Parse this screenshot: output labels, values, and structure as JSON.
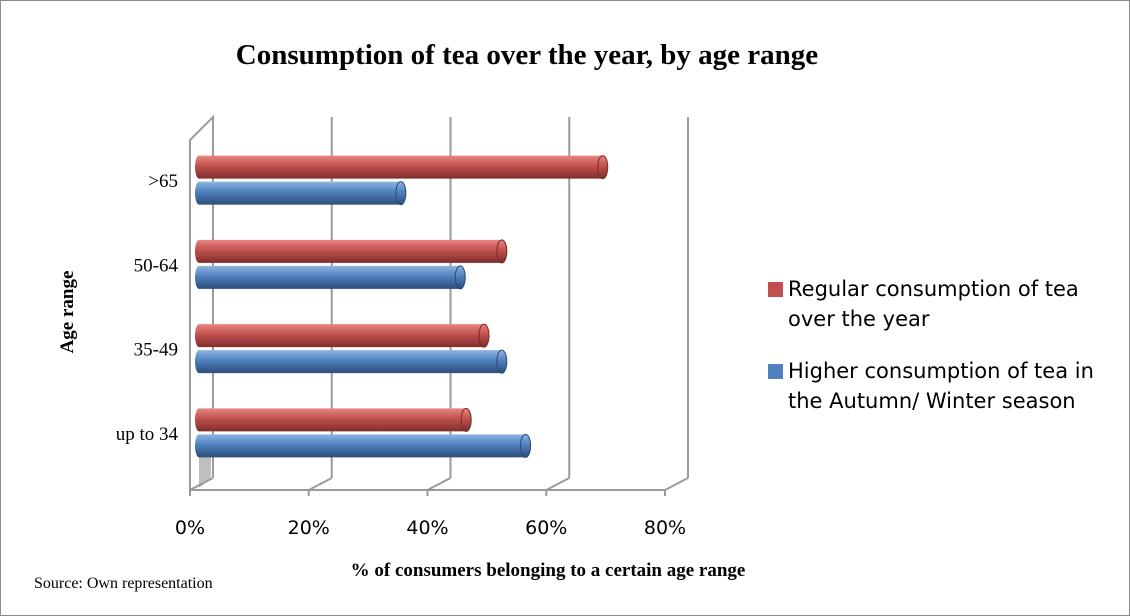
{
  "chart_data": {
    "type": "bar",
    "orientation": "horizontal",
    "title": "Consumption of tea over the year, by age range",
    "xlabel": "% of consumers belonging to a certain age range",
    "ylabel": "Age range",
    "categories": [
      "up to 34",
      "35-49",
      "50-64",
      ">65"
    ],
    "series": [
      {
        "name": "Regular consumption of tea over the year",
        "color": "#c0504d",
        "values": [
          45,
          48,
          51,
          68
        ]
      },
      {
        "name": "Higher consumption of tea in the Autumn/ Winter season",
        "color": "#4f81bd",
        "values": [
          55,
          51,
          44,
          34
        ]
      }
    ],
    "xlim": [
      0,
      80
    ],
    "xticks": [
      "0%",
      "20%",
      "40%",
      "60%",
      "80%"
    ],
    "grid": true,
    "legend_position": "right"
  },
  "source_note": "Source: Own representation"
}
